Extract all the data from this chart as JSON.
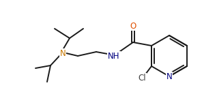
{
  "bg_color": "#ffffff",
  "bond_color": "#1a1a1a",
  "atom_colors": {
    "O": "#e05000",
    "N": "#c87800",
    "N_blue": "#000080",
    "Cl": "#404040",
    "C": "#1a1a1a"
  },
  "figsize": [
    3.18,
    1.51
  ],
  "dpi": 100,
  "lw": 1.4
}
